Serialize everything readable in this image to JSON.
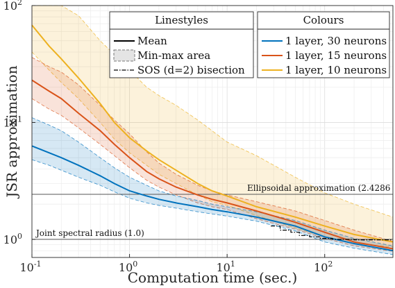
{
  "chart_data": {
    "type": "line",
    "xlabel": "Computation time (sec.)",
    "ylabel": "JSR approximation",
    "x_scale": "log",
    "y_scale": "log",
    "xlim": [
      0.1,
      500
    ],
    "ylim": [
      0.7,
      100
    ],
    "x_ticks": [
      0.1,
      1,
      10,
      100
    ],
    "x_tick_labels": [
      "10^-1",
      "10^0",
      "10^1",
      "10^2"
    ],
    "y_ticks": [
      1,
      10,
      100
    ],
    "y_tick_labels": [
      "10^0",
      "10^1",
      "10^2"
    ],
    "grid": true,
    "legends": [
      {
        "title": "Linestyles",
        "placement": "top-center",
        "entries": [
          {
            "label": "Mean",
            "style": "solid"
          },
          {
            "label": "Min-max area",
            "style": "area"
          },
          {
            "label": "SOS (d=2) bisection",
            "style": "dashdot"
          }
        ]
      },
      {
        "title": "Colours",
        "placement": "top-right",
        "entries": [
          {
            "label": "1 layer, 30 neurons",
            "color": "#0072BD"
          },
          {
            "label": "1 layer, 15 neurons",
            "color": "#D95319"
          },
          {
            "label": "1 layer, 10 neurons",
            "color": "#EDB120"
          }
        ]
      }
    ],
    "reference_lines": [
      {
        "label": "Ellipsoidal approximation (2.4286",
        "y": 2.4286
      },
      {
        "label": "Joint spectral radius (1.0)",
        "y": 1.0
      }
    ],
    "series": [
      {
        "color": "#EDB120",
        "x": [
          0.1,
          0.15,
          0.2,
          0.3,
          0.5,
          0.7,
          1,
          1.5,
          2,
          3,
          5,
          7,
          10,
          20,
          50,
          100,
          200,
          500
        ],
        "mean": [
          68,
          45,
          35,
          24,
          14.5,
          10,
          7.4,
          5.7,
          4.8,
          3.9,
          3.0,
          2.6,
          2.35,
          1.9,
          1.55,
          1.3,
          1.1,
          0.95
        ],
        "min": [
          40,
          28,
          22,
          16,
          10,
          7.2,
          5.5,
          4.3,
          3.6,
          3.0,
          2.4,
          2.1,
          1.95,
          1.6,
          1.25,
          1.05,
          0.92,
          0.86
        ],
        "max": [
          100,
          100,
          100,
          82,
          50,
          38,
          28,
          20,
          17,
          14,
          10.5,
          8.5,
          6.8,
          5.2,
          3.4,
          2.5,
          2.0,
          1.55
        ]
      },
      {
        "color": "#D95319",
        "x": [
          0.1,
          0.15,
          0.2,
          0.3,
          0.5,
          0.7,
          1,
          1.5,
          2,
          3,
          5,
          7,
          10,
          20,
          50,
          100,
          200,
          500
        ],
        "mean": [
          23,
          18.5,
          16,
          12,
          8.5,
          6.5,
          5.0,
          3.8,
          3.3,
          2.8,
          2.4,
          2.2,
          2.05,
          1.75,
          1.4,
          1.15,
          0.95,
          0.83
        ],
        "min": [
          16,
          13,
          11.5,
          9,
          6.5,
          5.2,
          4.1,
          3.2,
          2.8,
          2.4,
          2.05,
          1.9,
          1.8,
          1.5,
          1.22,
          1.02,
          0.88,
          0.79
        ],
        "max": [
          36,
          30,
          27,
          21,
          14,
          10.5,
          8,
          5.6,
          4.5,
          3.6,
          2.9,
          2.6,
          2.4,
          2.1,
          1.75,
          1.45,
          1.2,
          0.96
        ]
      },
      {
        "color": "#0072BD",
        "x": [
          0.1,
          0.15,
          0.2,
          0.3,
          0.5,
          0.7,
          1,
          1.5,
          2,
          3,
          5,
          7,
          10,
          20,
          50,
          100,
          200,
          500
        ],
        "mean": [
          6.3,
          5.5,
          5.0,
          4.3,
          3.5,
          3.0,
          2.6,
          2.35,
          2.2,
          2.05,
          1.9,
          1.8,
          1.72,
          1.55,
          1.3,
          1.05,
          0.92,
          0.8
        ],
        "min": [
          4.8,
          4.3,
          3.9,
          3.4,
          2.9,
          2.55,
          2.25,
          2.05,
          1.95,
          1.85,
          1.72,
          1.65,
          1.58,
          1.43,
          1.18,
          0.95,
          0.84,
          0.74
        ],
        "max": [
          11,
          9.5,
          8.5,
          6.8,
          5.0,
          4.1,
          3.4,
          2.9,
          2.6,
          2.35,
          2.15,
          2.0,
          1.9,
          1.72,
          1.45,
          1.2,
          1.02,
          0.88
        ]
      }
    ],
    "sos_bisection": {
      "x": [
        28,
        35,
        35,
        45,
        45,
        55,
        55,
        70,
        70,
        90,
        90,
        120,
        120,
        200,
        200,
        500
      ],
      "y": [
        1.3,
        1.3,
        1.2,
        1.2,
        1.15,
        1.15,
        1.08,
        1.08,
        1.05,
        1.05,
        1.02,
        1.02,
        1.0,
        1.0,
        0.99,
        0.99
      ]
    }
  }
}
